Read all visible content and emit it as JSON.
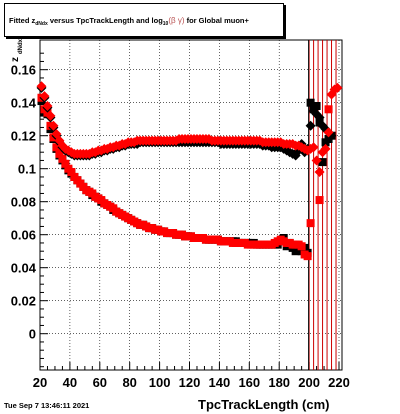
{
  "title": {
    "prefix": "Fitted  z",
    "sub1": "dNdx",
    "middle": "  versus TpcTrackLength and log",
    "sub2": "10",
    "beta": "(β  γ)",
    "suffix": " for Global muon+"
  },
  "footer_date": "Tue Sep  7 13:46:11 2021",
  "chart_data": {
    "type": "scatter",
    "title": "Fitted z_dNdx versus TpcTrackLength and log10(β γ) for Global muon+",
    "xlabel": "TpcTrackLength (cm)",
    "ylabel": "z_dNdx",
    "xlim": [
      20,
      222
    ],
    "ylim": [
      -0.022,
      0.178
    ],
    "xticks": [
      20,
      40,
      60,
      80,
      100,
      120,
      140,
      160,
      180,
      200,
      220
    ],
    "yticks": [
      0,
      0.02,
      0.04,
      0.06,
      0.08,
      0.1,
      0.12,
      0.14,
      0.16
    ],
    "ytick_labels": [
      "0",
      "0.02",
      "0.04",
      "0.06",
      "0.08",
      "0.1",
      "0.12",
      "0.14",
      "0.16"
    ],
    "grid": true,
    "vertical_lines_x": [
      200,
      203,
      206,
      209,
      212,
      215,
      218
    ],
    "colors": {
      "black_series": "#000000",
      "red_series": "#ff0000",
      "vlines": "#cc0000"
    },
    "series": [
      {
        "marker": "square",
        "color": "black",
        "x": [
          21,
          23,
          25,
          27,
          29,
          31,
          33,
          35,
          37,
          39,
          41,
          43,
          45,
          47,
          49,
          51,
          53,
          55,
          57,
          59,
          61,
          63,
          65,
          67,
          69,
          71,
          73,
          75,
          77,
          79,
          81,
          83,
          85,
          87,
          89,
          91,
          93,
          95,
          97,
          99,
          101,
          103,
          105,
          107,
          109,
          111,
          113,
          115,
          117,
          119,
          121,
          123,
          125,
          127,
          129,
          131,
          133,
          135,
          137,
          139,
          141,
          143,
          145,
          147,
          149,
          151,
          153,
          155,
          157,
          159,
          161,
          163,
          165,
          167,
          169,
          171,
          173,
          175,
          177,
          179,
          181,
          183,
          185,
          187,
          189,
          191,
          193,
          195,
          197,
          199,
          201,
          203,
          205,
          207,
          209,
          211,
          213,
          215
        ],
        "y": [
          0.141,
          0.134,
          0.133,
          0.124,
          0.118,
          0.112,
          0.108,
          0.105,
          0.102,
          0.099,
          0.097,
          0.095,
          0.093,
          0.091,
          0.089,
          0.087,
          0.086,
          0.084,
          0.083,
          0.082,
          0.08,
          0.079,
          0.078,
          0.077,
          0.075,
          0.074,
          0.073,
          0.072,
          0.071,
          0.07,
          0.069,
          0.068,
          0.067,
          0.066,
          0.066,
          0.065,
          0.064,
          0.064,
          0.063,
          0.063,
          0.062,
          0.062,
          0.061,
          0.061,
          0.061,
          0.06,
          0.06,
          0.06,
          0.059,
          0.059,
          0.059,
          0.058,
          0.058,
          0.058,
          0.058,
          0.057,
          0.057,
          0.057,
          0.057,
          0.057,
          0.056,
          0.056,
          0.056,
          0.056,
          0.056,
          0.056,
          0.055,
          0.055,
          0.055,
          0.055,
          0.055,
          0.055,
          0.054,
          0.054,
          0.054,
          0.054,
          0.054,
          0.054,
          0.054,
          0.054,
          0.056,
          0.058,
          0.053,
          0.055,
          0.052,
          0.05,
          0.052,
          0.05,
          0.052,
          0.049,
          0.14,
          0.136,
          0.138,
          0.128,
          0.104,
          0.116,
          0.118,
          0.12
        ]
      },
      {
        "marker": "square",
        "color": "red",
        "x": [
          21,
          23,
          25,
          27,
          29,
          31,
          33,
          35,
          37,
          39,
          41,
          43,
          45,
          47,
          49,
          51,
          53,
          55,
          57,
          59,
          61,
          63,
          65,
          67,
          69,
          71,
          73,
          75,
          77,
          79,
          81,
          83,
          85,
          87,
          89,
          91,
          93,
          95,
          97,
          99,
          101,
          103,
          105,
          107,
          109,
          111,
          113,
          115,
          117,
          119,
          121,
          123,
          125,
          127,
          129,
          131,
          133,
          135,
          137,
          139,
          141,
          143,
          145,
          147,
          149,
          151,
          153,
          155,
          157,
          159,
          161,
          163,
          165,
          167,
          169,
          171,
          173,
          175,
          177,
          179,
          181,
          183,
          185,
          187,
          189,
          191,
          193,
          195,
          197,
          199,
          201,
          207,
          213
        ],
        "y": [
          0.143,
          0.136,
          0.134,
          0.126,
          0.119,
          0.113,
          0.109,
          0.106,
          0.103,
          0.1,
          0.098,
          0.095,
          0.093,
          0.091,
          0.089,
          0.087,
          0.086,
          0.085,
          0.083,
          0.082,
          0.081,
          0.079,
          0.078,
          0.077,
          0.076,
          0.074,
          0.073,
          0.072,
          0.071,
          0.07,
          0.069,
          0.068,
          0.067,
          0.066,
          0.066,
          0.065,
          0.064,
          0.064,
          0.063,
          0.063,
          0.062,
          0.062,
          0.061,
          0.061,
          0.061,
          0.06,
          0.06,
          0.06,
          0.059,
          0.059,
          0.059,
          0.058,
          0.058,
          0.058,
          0.058,
          0.057,
          0.057,
          0.057,
          0.057,
          0.057,
          0.056,
          0.056,
          0.056,
          0.056,
          0.055,
          0.055,
          0.055,
          0.055,
          0.055,
          0.054,
          0.054,
          0.054,
          0.054,
          0.054,
          0.054,
          0.054,
          0.054,
          0.054,
          0.055,
          0.056,
          0.057,
          0.056,
          0.055,
          0.055,
          0.054,
          0.054,
          0.054,
          0.053,
          0.048,
          0.047,
          0.067,
          0.081,
          0.136
        ]
      },
      {
        "marker": "diamond",
        "color": "black",
        "x": [
          21,
          23,
          25,
          27,
          29,
          31,
          33,
          35,
          37,
          39,
          41,
          43,
          45,
          47,
          49,
          51,
          53,
          55,
          57,
          59,
          61,
          63,
          65,
          67,
          69,
          71,
          73,
          75,
          77,
          79,
          81,
          83,
          85,
          87,
          89,
          91,
          93,
          95,
          97,
          99,
          101,
          103,
          105,
          107,
          109,
          111,
          113,
          115,
          117,
          119,
          121,
          123,
          125,
          127,
          129,
          131,
          133,
          135,
          137,
          139,
          141,
          143,
          145,
          147,
          149,
          151,
          153,
          155,
          157,
          159,
          161,
          163,
          165,
          167,
          169,
          171,
          173,
          175,
          177,
          179,
          181,
          183,
          185,
          187,
          189,
          191,
          193,
          195,
          197,
          199,
          201,
          203,
          205,
          207,
          209,
          211,
          213,
          215
        ],
        "y": [
          0.149,
          0.143,
          0.137,
          0.131,
          0.125,
          0.12,
          0.116,
          0.113,
          0.111,
          0.11,
          0.109,
          0.108,
          0.108,
          0.108,
          0.108,
          0.108,
          0.108,
          0.109,
          0.109,
          0.11,
          0.11,
          0.111,
          0.111,
          0.112,
          0.112,
          0.113,
          0.113,
          0.114,
          0.114,
          0.115,
          0.115,
          0.115,
          0.115,
          0.116,
          0.116,
          0.116,
          0.116,
          0.116,
          0.116,
          0.116,
          0.116,
          0.116,
          0.116,
          0.116,
          0.116,
          0.116,
          0.116,
          0.116,
          0.116,
          0.116,
          0.116,
          0.116,
          0.116,
          0.116,
          0.116,
          0.116,
          0.116,
          0.116,
          0.116,
          0.116,
          0.115,
          0.115,
          0.115,
          0.115,
          0.115,
          0.115,
          0.115,
          0.115,
          0.115,
          0.115,
          0.115,
          0.115,
          0.115,
          0.115,
          0.114,
          0.114,
          0.114,
          0.113,
          0.113,
          0.113,
          0.113,
          0.112,
          0.111,
          0.11,
          0.109,
          0.108,
          0.111,
          0.115,
          0.11,
          0.112,
          0.126,
          0.135,
          0.133,
          0.131,
          0.126,
          0.124,
          0.122,
          0.12
        ]
      },
      {
        "marker": "diamond",
        "color": "red",
        "x": [
          21,
          23,
          25,
          27,
          29,
          31,
          33,
          35,
          37,
          39,
          41,
          43,
          45,
          47,
          49,
          51,
          53,
          55,
          57,
          59,
          61,
          63,
          65,
          67,
          69,
          71,
          73,
          75,
          77,
          79,
          81,
          83,
          85,
          87,
          89,
          91,
          93,
          95,
          97,
          99,
          101,
          103,
          105,
          107,
          109,
          111,
          113,
          115,
          117,
          119,
          121,
          123,
          125,
          127,
          129,
          131,
          133,
          135,
          137,
          139,
          141,
          143,
          145,
          147,
          149,
          151,
          153,
          155,
          157,
          159,
          161,
          163,
          165,
          167,
          169,
          171,
          173,
          175,
          177,
          179,
          181,
          183,
          185,
          187,
          189,
          191,
          193,
          195,
          197,
          199,
          201,
          203,
          205,
          207,
          209,
          211,
          213,
          215,
          217,
          219
        ],
        "y": [
          0.15,
          0.144,
          0.138,
          0.132,
          0.126,
          0.121,
          0.117,
          0.114,
          0.112,
          0.111,
          0.11,
          0.109,
          0.109,
          0.109,
          0.109,
          0.109,
          0.109,
          0.11,
          0.11,
          0.111,
          0.111,
          0.112,
          0.112,
          0.113,
          0.113,
          0.114,
          0.114,
          0.115,
          0.115,
          0.116,
          0.116,
          0.116,
          0.117,
          0.117,
          0.117,
          0.117,
          0.117,
          0.117,
          0.117,
          0.117,
          0.117,
          0.117,
          0.117,
          0.117,
          0.117,
          0.117,
          0.118,
          0.118,
          0.118,
          0.118,
          0.118,
          0.118,
          0.118,
          0.118,
          0.118,
          0.118,
          0.118,
          0.117,
          0.117,
          0.117,
          0.117,
          0.117,
          0.117,
          0.117,
          0.117,
          0.117,
          0.117,
          0.117,
          0.117,
          0.117,
          0.117,
          0.117,
          0.117,
          0.117,
          0.116,
          0.116,
          0.116,
          0.116,
          0.116,
          0.116,
          0.116,
          0.115,
          0.115,
          0.115,
          0.115,
          0.114,
          0.114,
          0.113,
          0.112,
          0.111,
          0.112,
          0.113,
          0.105,
          0.098,
          0.11,
          0.112,
          0.122,
          0.145,
          0.148,
          0.149
        ]
      }
    ]
  }
}
